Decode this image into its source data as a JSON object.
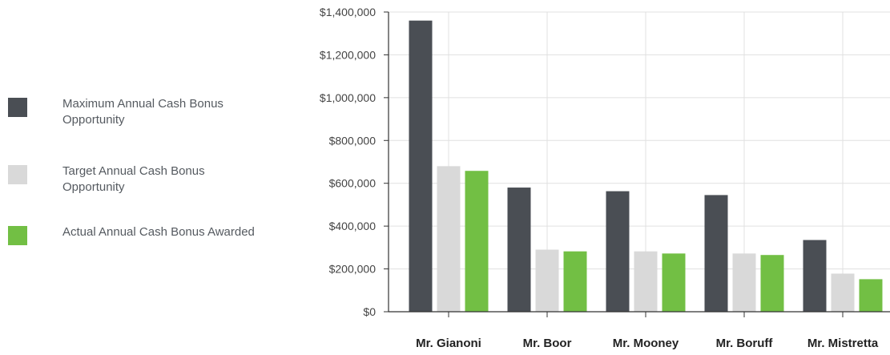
{
  "chart_data": {
    "type": "bar",
    "title": "",
    "xlabel": "",
    "ylabel": "",
    "categories": [
      "Mr. Gianoni",
      "Mr. Boor",
      "Mr. Mooney",
      "Mr. Boruff",
      "Mr. Mistretta"
    ],
    "series": [
      {
        "name": "Maximum Annual Cash Bonus Opportunity",
        "color": "#4a4e54",
        "values": [
          1360000,
          580000,
          563000,
          545000,
          335000
        ]
      },
      {
        "name": "Target Annual Cash Bonus Opportunity",
        "color": "#d9d9d9",
        "values": [
          680000,
          290000,
          282000,
          272000,
          178000
        ]
      },
      {
        "name": "Actual Annual Cash Bonus Awarded",
        "color": "#72bf44",
        "values": [
          658000,
          282000,
          272000,
          265000,
          152000
        ]
      }
    ],
    "ylim": [
      0,
      1400000
    ],
    "yticks": [
      "$0",
      "$200,000",
      "$400,000",
      "$600,000",
      "$800,000",
      "$1,000,000",
      "$1,200,000",
      "$1,400,000"
    ],
    "grid": true,
    "legend_position": "left"
  }
}
